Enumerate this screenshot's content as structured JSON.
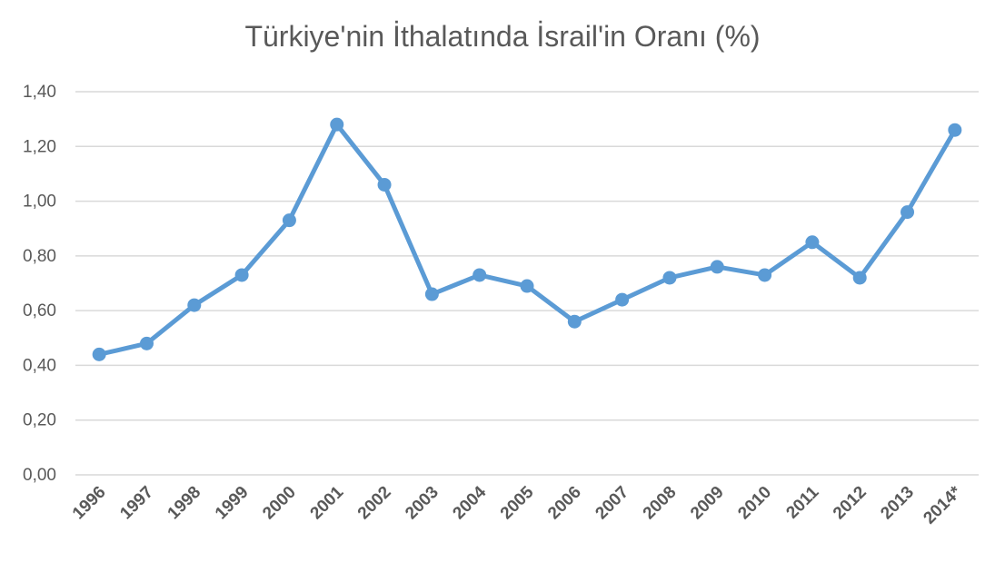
{
  "chart_data": {
    "type": "line",
    "title": "Türkiye'nin İthalatında İsrail'in Oranı (%)",
    "xlabel": "",
    "ylabel": "",
    "categories": [
      "1996",
      "1997",
      "1998",
      "1999",
      "2000",
      "2001",
      "2002",
      "2003",
      "2004",
      "2005",
      "2006",
      "2007",
      "2008",
      "2009",
      "2010",
      "2011",
      "2012",
      "2013",
      "2014*"
    ],
    "series": [
      {
        "values": [
          0.44,
          0.48,
          0.62,
          0.73,
          0.93,
          1.28,
          1.06,
          0.66,
          0.73,
          0.69,
          0.56,
          0.64,
          0.72,
          0.76,
          0.73,
          0.85,
          0.72,
          0.96,
          1.26
        ]
      }
    ],
    "ylim": [
      0,
      1.4
    ],
    "yticks": [
      "0,00",
      "0,20",
      "0,40",
      "0,60",
      "0,80",
      "1,00",
      "1,20",
      "1,40"
    ],
    "grid": true,
    "legend": "none",
    "line_color": "#5b9bd5"
  }
}
